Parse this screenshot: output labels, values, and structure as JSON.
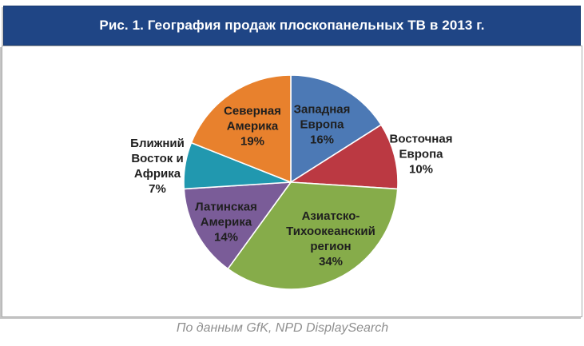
{
  "header": {
    "title": "Рис. 1. География продаж плоскопанельных ТВ в 2013 г."
  },
  "footer": {
    "source_note": "По данным GfK, NPD DisplaySearch"
  },
  "colors": {
    "title_bar_bg": "#1F4585",
    "panel_border": "#ABABAB",
    "slice_outline": "#FFFFFF",
    "label_text": "#1F1F1F",
    "caption_text": "#8F8F8F"
  },
  "chart_data": {
    "type": "pie",
    "title": "Рис. 1. География продаж плоскопанельных ТВ в 2013 г.",
    "source_note": "По данным GfK, NPD DisplaySearch",
    "start_angle_deg_from_top": 0,
    "direction": "clockwise",
    "legend": "none",
    "segments": [
      {
        "id": "western-europe",
        "label": "Западная Европа",
        "value": 16,
        "pct_label": "16%",
        "color": "#4C79B5",
        "label_placement": "inside"
      },
      {
        "id": "eastern-europe",
        "label": "Восточная Европа",
        "value": 10,
        "pct_label": "10%",
        "color": "#BB3942",
        "label_placement": "outside"
      },
      {
        "id": "asia-pacific",
        "label": "Азиатско-Тихоокеанский регион",
        "value": 34,
        "pct_label": "34%",
        "color": "#86AC4A",
        "label_placement": "inside"
      },
      {
        "id": "latin-america",
        "label": "Латинская Америка",
        "value": 14,
        "pct_label": "14%",
        "color": "#7A5C98",
        "label_placement": "inside"
      },
      {
        "id": "middle-east-africa",
        "label": "Ближний Восток и Африка",
        "value": 7,
        "pct_label": "7%",
        "color": "#2198AF",
        "label_placement": "outside"
      },
      {
        "id": "north-america",
        "label": "Северная Америка",
        "value": 19,
        "pct_label": "19%",
        "color": "#E8812D",
        "label_placement": "inside"
      }
    ]
  }
}
